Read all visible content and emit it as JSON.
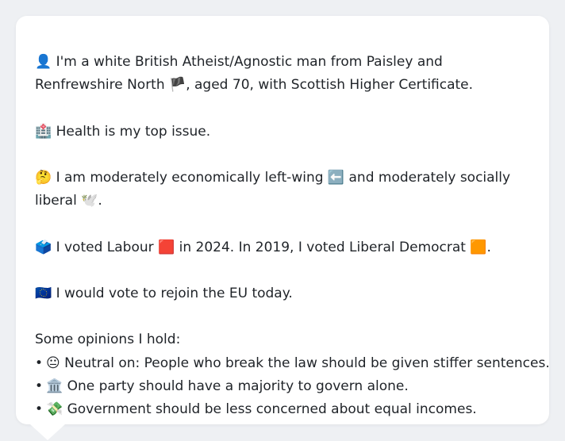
{
  "profile": {
    "identity_emoji": "👤",
    "identity_text": "I'm a white British Atheist/Agnostic man from Paisley and Renfrewshire North",
    "flag_emoji": "🏴",
    "identity_suffix": ", aged 70, with Scottish Higher Certificate."
  },
  "health": {
    "emoji": "🏥",
    "text": "Health is my top issue."
  },
  "politics": {
    "emoji": "🤔",
    "text_before": "I am moderately economically left-wing",
    "left_emoji": "⬅️",
    "text_middle": "and moderately socially liberal",
    "dove_emoji": "🕊️",
    "text_after": "."
  },
  "votes": {
    "emoji": "🗳️",
    "text_before": "I voted Labour",
    "labour_emoji": "🟥",
    "text_middle": "in 2024. In 2019, I voted Liberal Democrat",
    "libdem_emoji": "🟧",
    "text_after": "."
  },
  "eu": {
    "emoji": "🇪🇺",
    "text": "I would vote to rejoin the EU today."
  },
  "opinions": {
    "heading": "Some opinions I hold:",
    "bullet": "•",
    "items": [
      {
        "emoji": "😐",
        "text": "Neutral on: People who break the law should be given stiffer sentences."
      },
      {
        "emoji": "🏛️",
        "text": "One party should have a majority to govern alone."
      },
      {
        "emoji": "💸",
        "text": "Government should be less concerned about equal incomes."
      }
    ]
  }
}
